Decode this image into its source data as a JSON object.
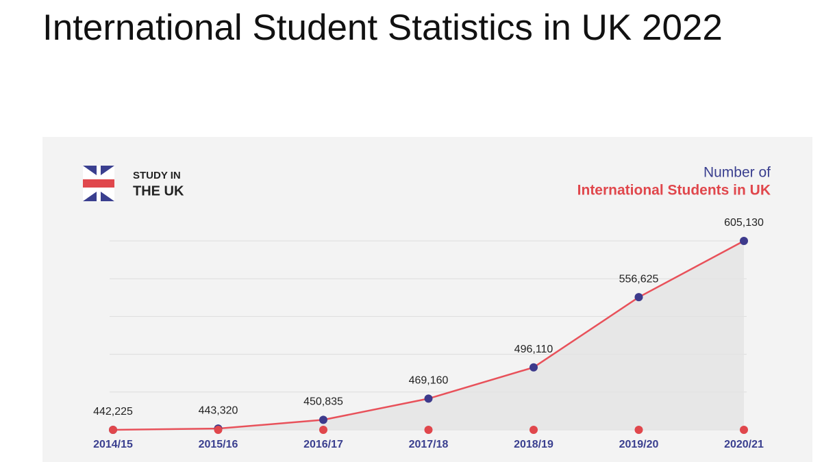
{
  "header": {
    "title": "International Student Statistics in UK 2022"
  },
  "chart_data": {
    "type": "line",
    "logo": {
      "line1": "STUDY IN",
      "line2": "THE UK"
    },
    "subtitle": "Number of",
    "title": "International Students in UK",
    "categories": [
      "2014/15",
      "2015/16",
      "2016/17",
      "2017/18",
      "2018/19",
      "2019/20",
      "2020/21"
    ],
    "values": [
      442225,
      443320,
      450835,
      469160,
      496110,
      556625,
      605130
    ],
    "value_labels": [
      "442,225",
      "443,320",
      "450,835",
      "469,160",
      "496,110",
      "556,625",
      "605,130"
    ],
    "color": "#e8515a",
    "marker_color": "#3d3a8c",
    "grid": true
  }
}
